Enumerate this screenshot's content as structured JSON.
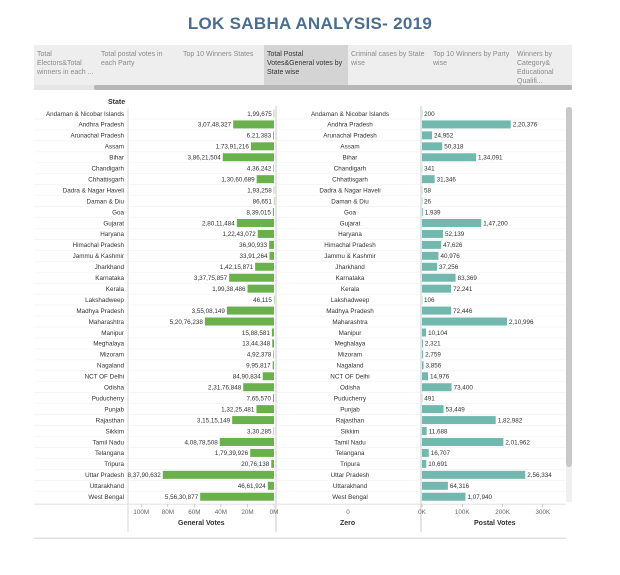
{
  "page": {
    "title": "LOK SABHA ANALYSIS- 2019"
  },
  "tabs": [
    {
      "label": "Total Electors&Total winners in each ...",
      "active": false
    },
    {
      "label": "Total postal votes in each Party",
      "active": false
    },
    {
      "label": "Top 10 Winners States",
      "active": false
    },
    {
      "label": "Total Postal Votes&General votes by State wise",
      "active": true
    },
    {
      "label": "Criminal cases by State wise",
      "active": false
    },
    {
      "label": "Top 10 Winners by Party wise",
      "active": false
    },
    {
      "label": "Winners by Category& Educational Qualifi...",
      "active": false
    }
  ],
  "colors": {
    "general_bar": "#6ab04c",
    "postal_bar": "#72b8ae",
    "title": "#4a6f92"
  },
  "chart_data": {
    "type": "bar",
    "row_header": "State",
    "categories": [
      "Andaman & Nicobar Islands",
      "Andhra Pradesh",
      "Arunachal Pradesh",
      "Assam",
      "Bihar",
      "Chandigarh",
      "Chhattisgarh",
      "Dadra & Nagar Haveli",
      "Daman & Diu",
      "Goa",
      "Gujarat",
      "Haryana",
      "Himachal Pradesh",
      "Jammu & Kashmir",
      "Jharkhand",
      "Karnataka",
      "Kerala",
      "Lakshadweep",
      "Madhya Pradesh",
      "Maharashtra",
      "Manipur",
      "Meghalaya",
      "Mizoram",
      "Nagaland",
      "NCT OF Delhi",
      "Odisha",
      "Puducherry",
      "Punjab",
      "Rajasthan",
      "Sikkim",
      "Tamil Nadu",
      "Telangana",
      "Tripura",
      "Uttar Pradesh",
      "Uttarakhand",
      "West Bengal"
    ],
    "series": [
      {
        "name": "General Votes",
        "values": [
          199675,
          30748327,
          621383,
          17391216,
          38621504,
          436242,
          13060689,
          193258,
          86651,
          839015,
          28011484,
          12243072,
          3690933,
          3391264,
          14215871,
          33775857,
          19938486,
          46115,
          35508149,
          52076238,
          1588581,
          1344348,
          492378,
          995817,
          8490834,
          23176848,
          765570,
          13225481,
          31515149,
          330285,
          40878508,
          17939926,
          2076138,
          83790632,
          4661924,
          55630877
        ],
        "labels": [
          "1,99,675",
          "3,07,48,327",
          "6,21,383",
          "1,73,91,216",
          "3,86,21,504",
          "4,36,242",
          "1,30,60,689",
          "1,93,258",
          "86,651",
          "8,39,015",
          "2,80,11,484",
          "1,22,43,072",
          "36,90,933",
          "33,91,264",
          "1,42,15,871",
          "3,37,75,857",
          "1,99,38,486",
          "46,115",
          "3,55,08,149",
          "5,20,76,238",
          "15,88,581",
          "13,44,348",
          "4,92,378",
          "9,95,817",
          "84,90,834",
          "2,31,76,848",
          "7,65,570",
          "1,32,25,481",
          "3,15,15,149",
          "3,30,285",
          "4,08,78,508",
          "1,79,39,926",
          "20,76,138",
          "8,37,90,632",
          "46,61,924",
          "5,56,30,877"
        ]
      },
      {
        "name": "Postal Votes",
        "values": [
          200,
          220376,
          24952,
          50318,
          134091,
          341,
          31346,
          58,
          26,
          1939,
          147200,
          52139,
          47626,
          40976,
          37256,
          83369,
          72241,
          106,
          72446,
          210996,
          10104,
          2321,
          2759,
          3856,
          14976,
          73400,
          491,
          53449,
          182982,
          11688,
          201962,
          16707,
          10691,
          256334,
          64316,
          107940
        ],
        "labels": [
          "200",
          "2,20,376",
          "24,952",
          "50,318",
          "1,34,091",
          "341",
          "31,346",
          "58",
          "26",
          "1,939",
          "1,47,200",
          "52,139",
          "47,626",
          "40,976",
          "37,256",
          "83,369",
          "72,241",
          "106",
          "72,446",
          "2,10,996",
          "10,104",
          "2,321",
          "2,759",
          "3,856",
          "14,976",
          "73,400",
          "491",
          "53,449",
          "1,82,982",
          "11,688",
          "2,01,962",
          "16,707",
          "10,691",
          "2,56,334",
          "64,316",
          "1,07,940"
        ]
      }
    ],
    "general_axis": {
      "title": "General Votes",
      "ticks": [
        "100M",
        "80M",
        "60M",
        "40M",
        "20M",
        "0M"
      ],
      "tick_values": [
        100000000,
        80000000,
        60000000,
        40000000,
        20000000,
        0
      ],
      "range": [
        0,
        110000000
      ],
      "reversed": true
    },
    "zero_axis": {
      "title": "Zero",
      "tick": "0"
    },
    "postal_axis": {
      "title": "Postal Votes",
      "ticks": [
        "0K",
        "100K",
        "200K",
        "300K"
      ],
      "tick_values": [
        0,
        100000,
        200000,
        300000
      ],
      "range": [
        0,
        360000
      ]
    }
  }
}
